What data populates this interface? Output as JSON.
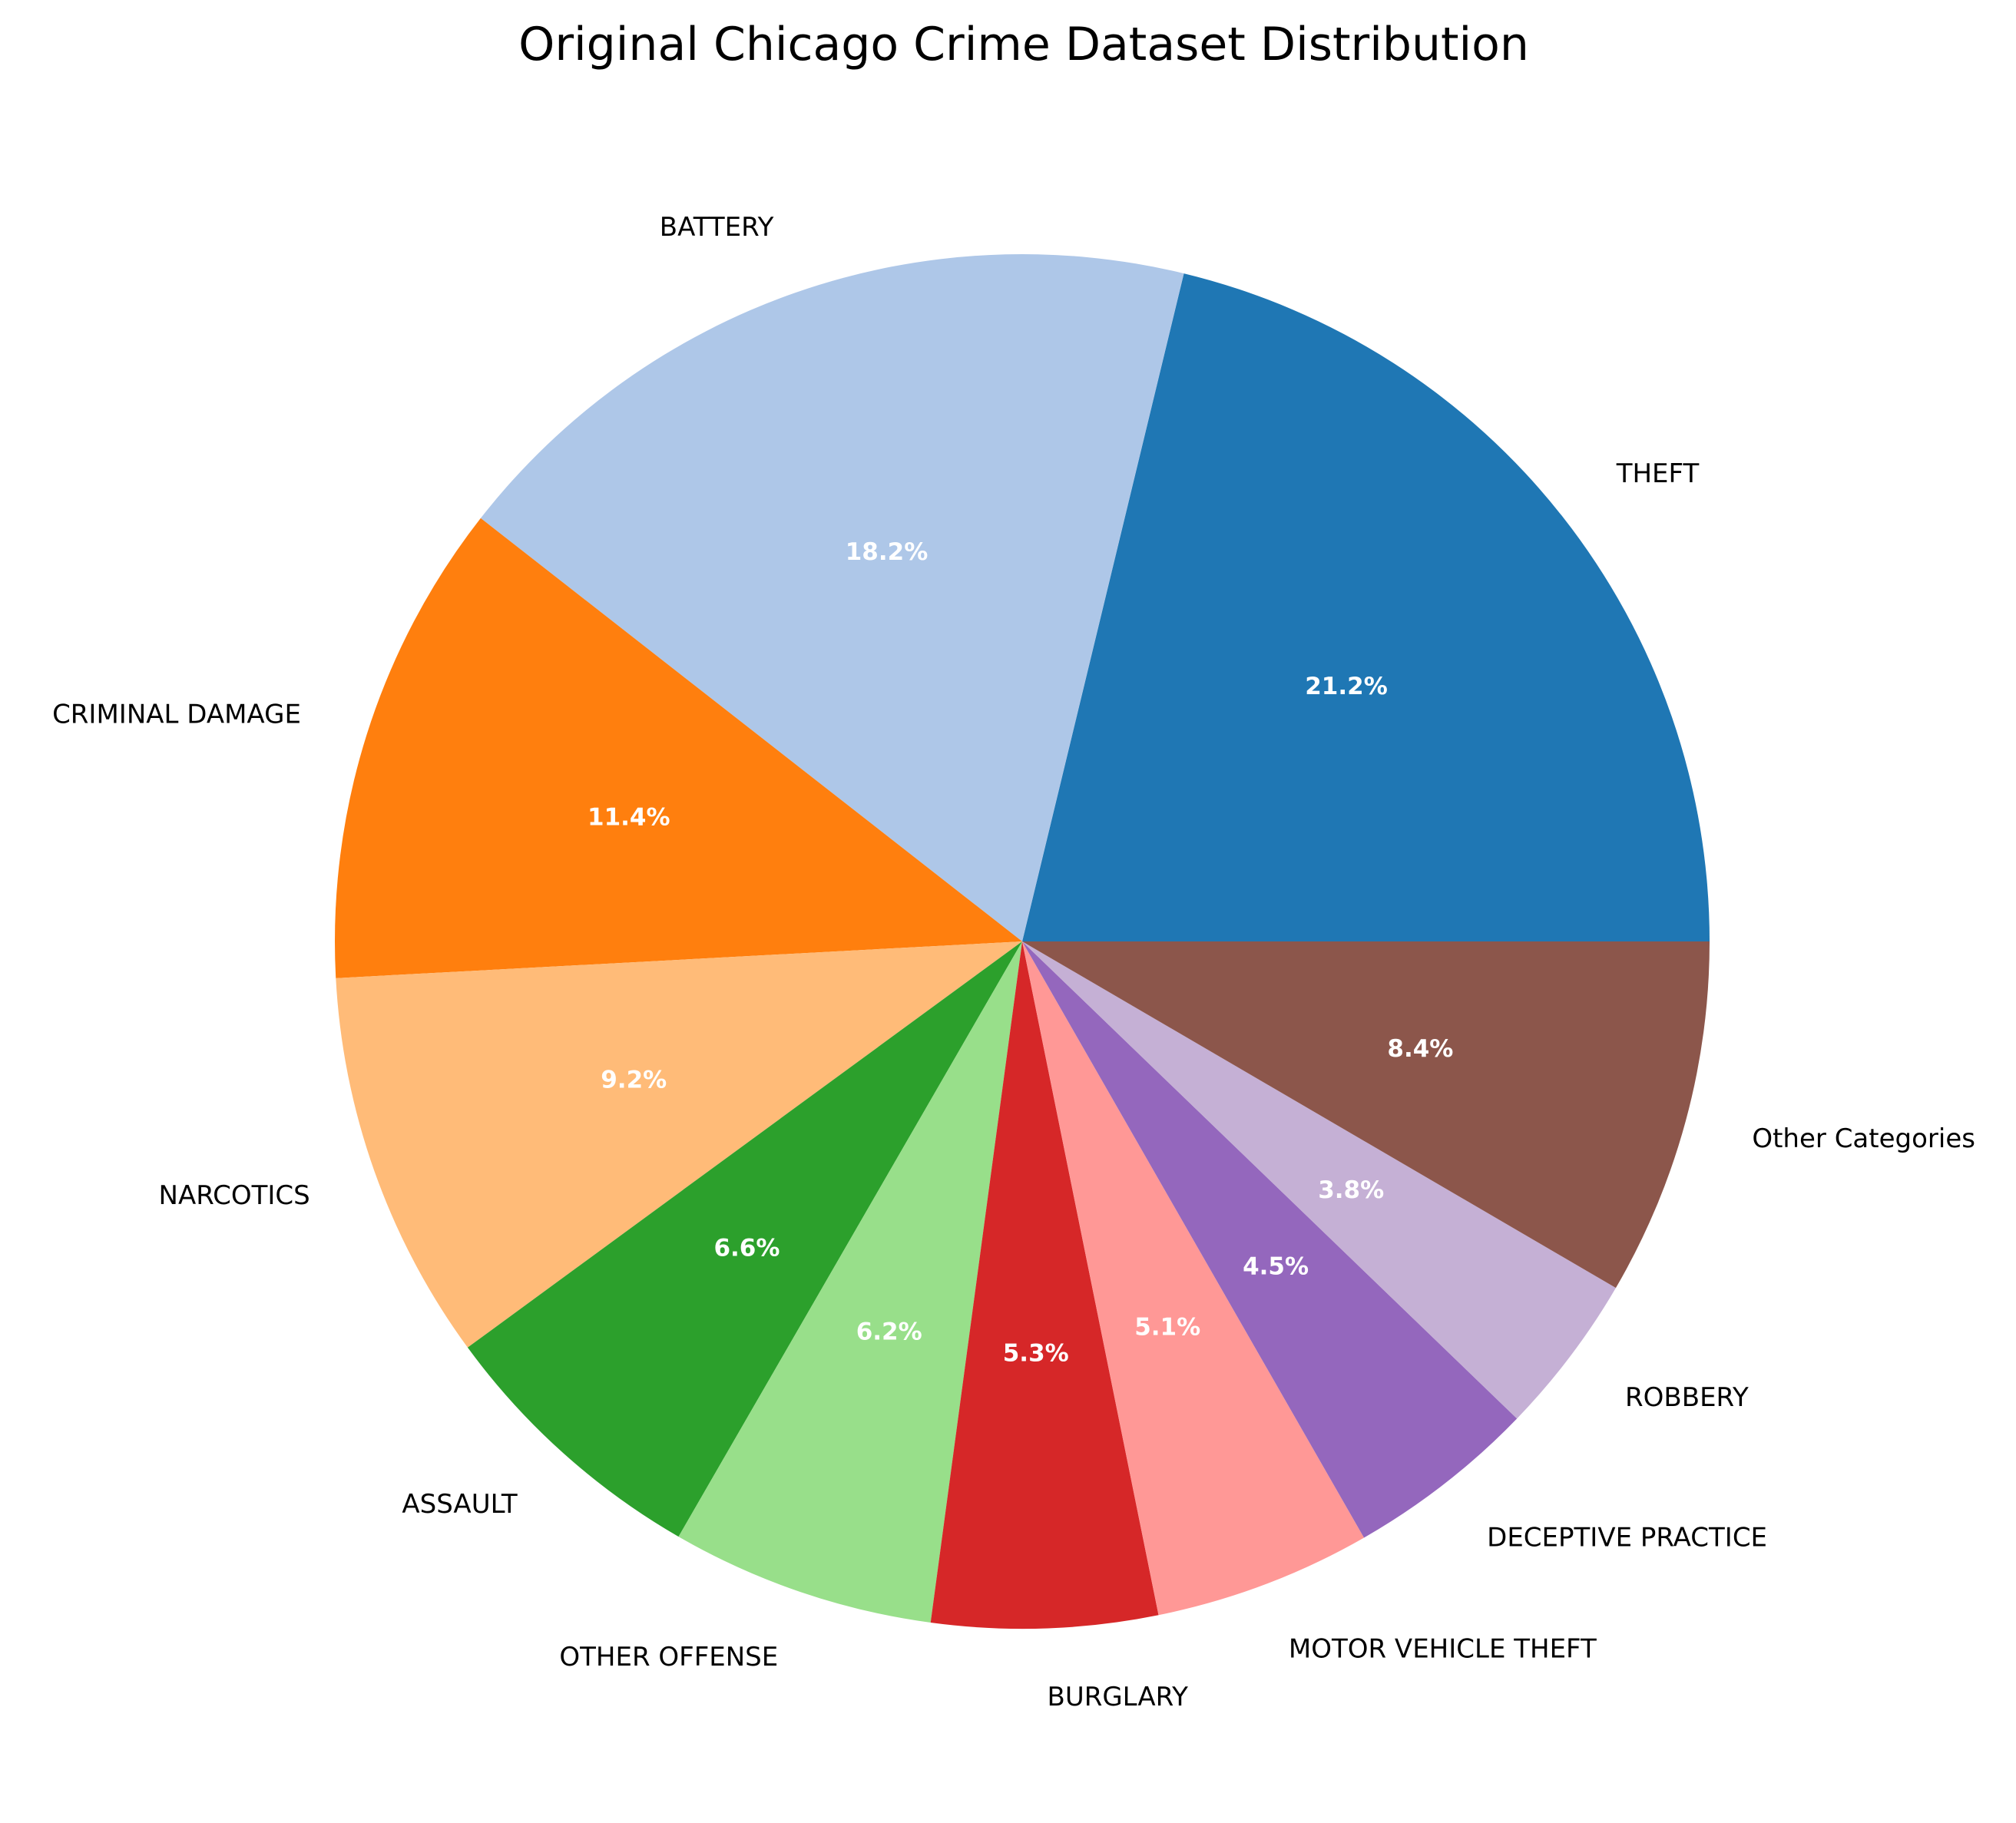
{
  "chart_data": {
    "type": "pie",
    "title": "Original Chicago Crime Dataset Distribution",
    "start_angle_deg": 0,
    "direction": "counterclockwise",
    "slices": [
      {
        "label": "THEFT",
        "value": 21.2,
        "pct_label": "21.2%",
        "color": "#1f77b4"
      },
      {
        "label": "BATTERY",
        "value": 18.2,
        "pct_label": "18.2%",
        "color": "#aec7e8"
      },
      {
        "label": "CRIMINAL DAMAGE",
        "value": 11.4,
        "pct_label": "11.4%",
        "color": "#ff7f0e"
      },
      {
        "label": "NARCOTICS",
        "value": 9.2,
        "pct_label": "9.2%",
        "color": "#ffbb78"
      },
      {
        "label": "ASSAULT",
        "value": 6.6,
        "pct_label": "6.6%",
        "color": "#2ca02c"
      },
      {
        "label": "OTHER OFFENSE",
        "value": 6.2,
        "pct_label": "6.2%",
        "color": "#98df8a"
      },
      {
        "label": "BURGLARY",
        "value": 5.3,
        "pct_label": "5.3%",
        "color": "#d62728"
      },
      {
        "label": "MOTOR VEHICLE THEFT",
        "value": 5.1,
        "pct_label": "5.1%",
        "color": "#ff9896"
      },
      {
        "label": "DECEPTIVE PRACTICE",
        "value": 4.5,
        "pct_label": "4.5%",
        "color": "#9467bd"
      },
      {
        "label": "ROBBERY",
        "value": 3.8,
        "pct_label": "3.8%",
        "color": "#c5b0d5"
      },
      {
        "label": "Other Categories",
        "value": 8.4,
        "pct_label": "8.4%",
        "color": "#8c564b"
      }
    ]
  }
}
